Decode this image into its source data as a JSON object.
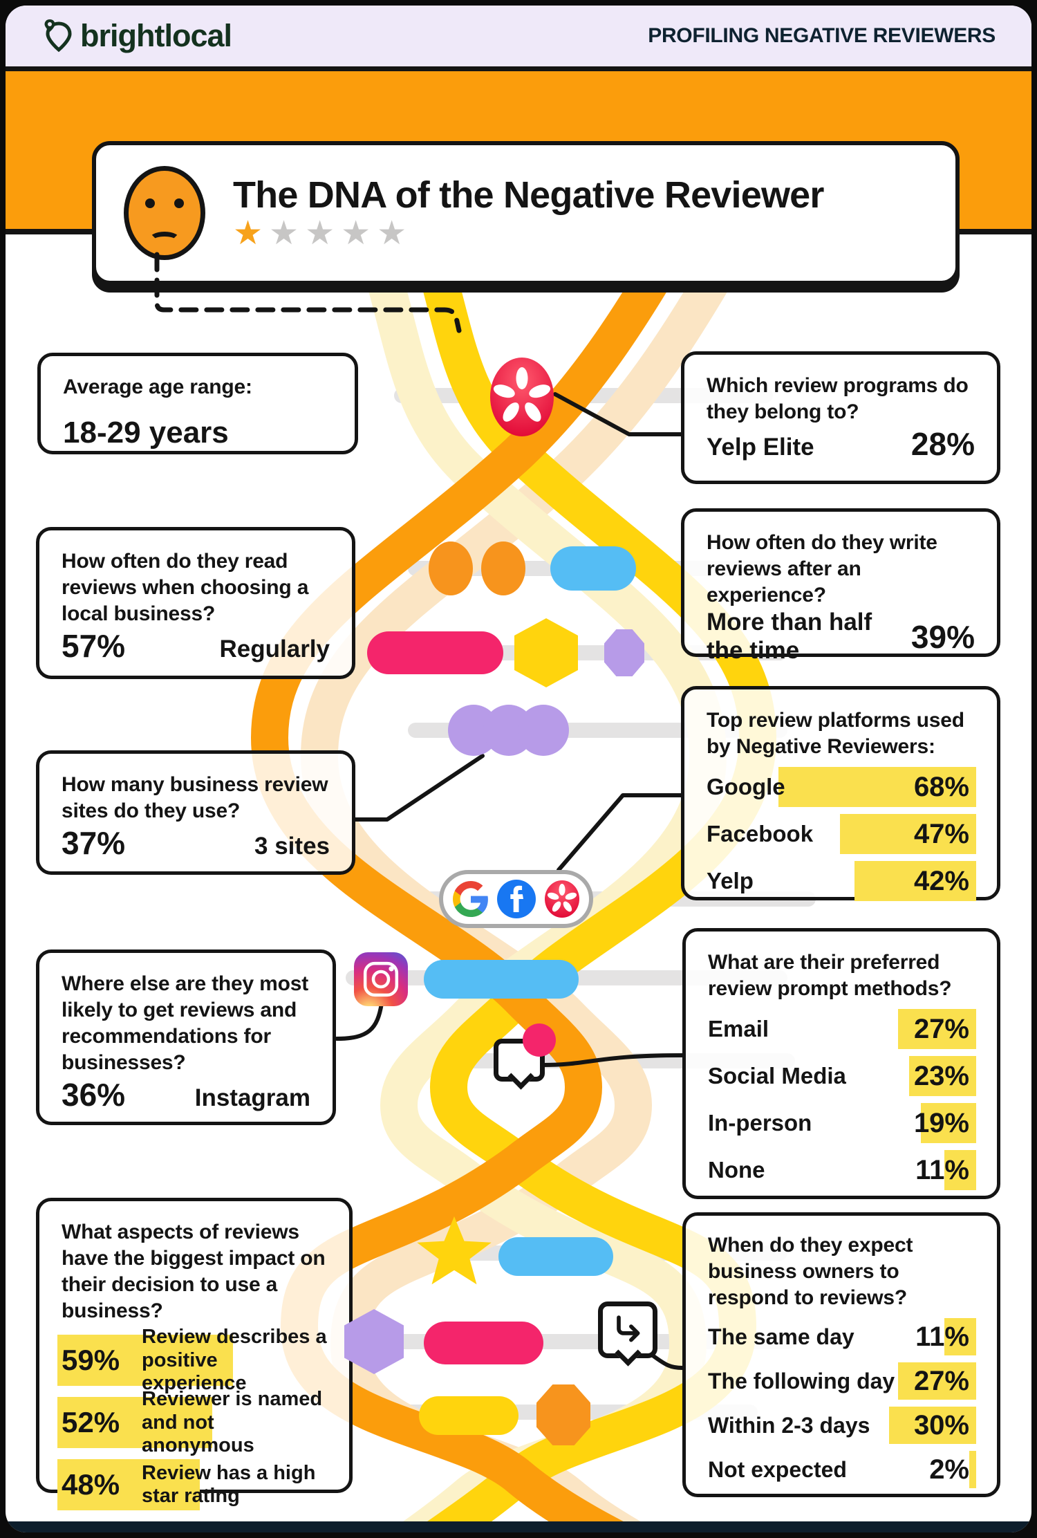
{
  "palette": {
    "orange": "#FB9D0C",
    "yellow": "#FFD40D",
    "pale_orange": "#FBE5C4",
    "pale_yellow": "#FCF2C9",
    "pink": "#F4256B",
    "blue": "#55BDF4",
    "purple": "#B79BE8",
    "bar_yellow": "#FAE04E",
    "lavender": "#EFE9F9",
    "navy": "#0D1E2C",
    "ink": "#141414",
    "star_orange": "#F7A21B",
    "star_gray": "#C7C6C5"
  },
  "header": {
    "logo_text": "brightlocal",
    "tagline": "PROFILING NEGATIVE REVIEWERS"
  },
  "hero": {
    "title": "The DNA of the Negative Reviewer",
    "star_glyph": "★",
    "rating_note": "1 of 5 stars"
  },
  "left": {
    "age": {
      "question": "Average age range:",
      "answer": "18-29 years"
    },
    "read": {
      "question": "How often do they read reviews when choosing a local business?",
      "pct": "57%",
      "answer": "Regularly"
    },
    "sites": {
      "question": "How many business review sites do they use?",
      "pct": "37%",
      "answer": "3 sites"
    },
    "where": {
      "question": "Where else are they most likely to get reviews and recommendations for businesses?",
      "pct": "36%",
      "answer": "Instagram"
    },
    "aspects": {
      "question": "What aspects of reviews have the biggest impact on their decision to use a business?",
      "items": [
        {
          "pct": 59,
          "pct_label": "59%",
          "label": "Review describes a positive experience"
        },
        {
          "pct": 52,
          "pct_label": "52%",
          "label": "Reviewer is named and not anonymous"
        },
        {
          "pct": 48,
          "pct_label": "48%",
          "label": "Review has a high star rating"
        }
      ]
    }
  },
  "right": {
    "programs": {
      "question": "Which review programs do they belong to?",
      "label": "Yelp Elite",
      "value": "28%"
    },
    "write": {
      "question": "How often do they write reviews after an experience?",
      "label": "More than half the time",
      "value": "39%"
    },
    "platforms": {
      "question": "Top review platforms used by Negative Reviewers:",
      "bars": [
        {
          "label": "Google",
          "pct": 68,
          "value": "68%"
        },
        {
          "label": "Facebook",
          "pct": 47,
          "value": "47%"
        },
        {
          "label": "Yelp",
          "pct": 42,
          "value": "42%"
        }
      ]
    },
    "prompts": {
      "question": "What are their preferred review prompt methods?",
      "bars": [
        {
          "label": "Email",
          "pct": 27,
          "value": "27%"
        },
        {
          "label": "Social Media",
          "pct": 23,
          "value": "23%"
        },
        {
          "label": "In-person",
          "pct": 19,
          "value": "19%"
        },
        {
          "label": "None",
          "pct": 11,
          "value": "11%"
        }
      ]
    },
    "respond": {
      "question": "When do they expect business owners to respond to reviews?",
      "bars": [
        {
          "label": "The same day",
          "pct": 11,
          "value": "11%"
        },
        {
          "label": "The following day",
          "pct": 27,
          "value": "27%"
        },
        {
          "label": "Within 2-3 days",
          "pct": 30,
          "value": "30%"
        },
        {
          "label": "Not expected",
          "pct": 2,
          "value": "2%"
        }
      ]
    }
  }
}
